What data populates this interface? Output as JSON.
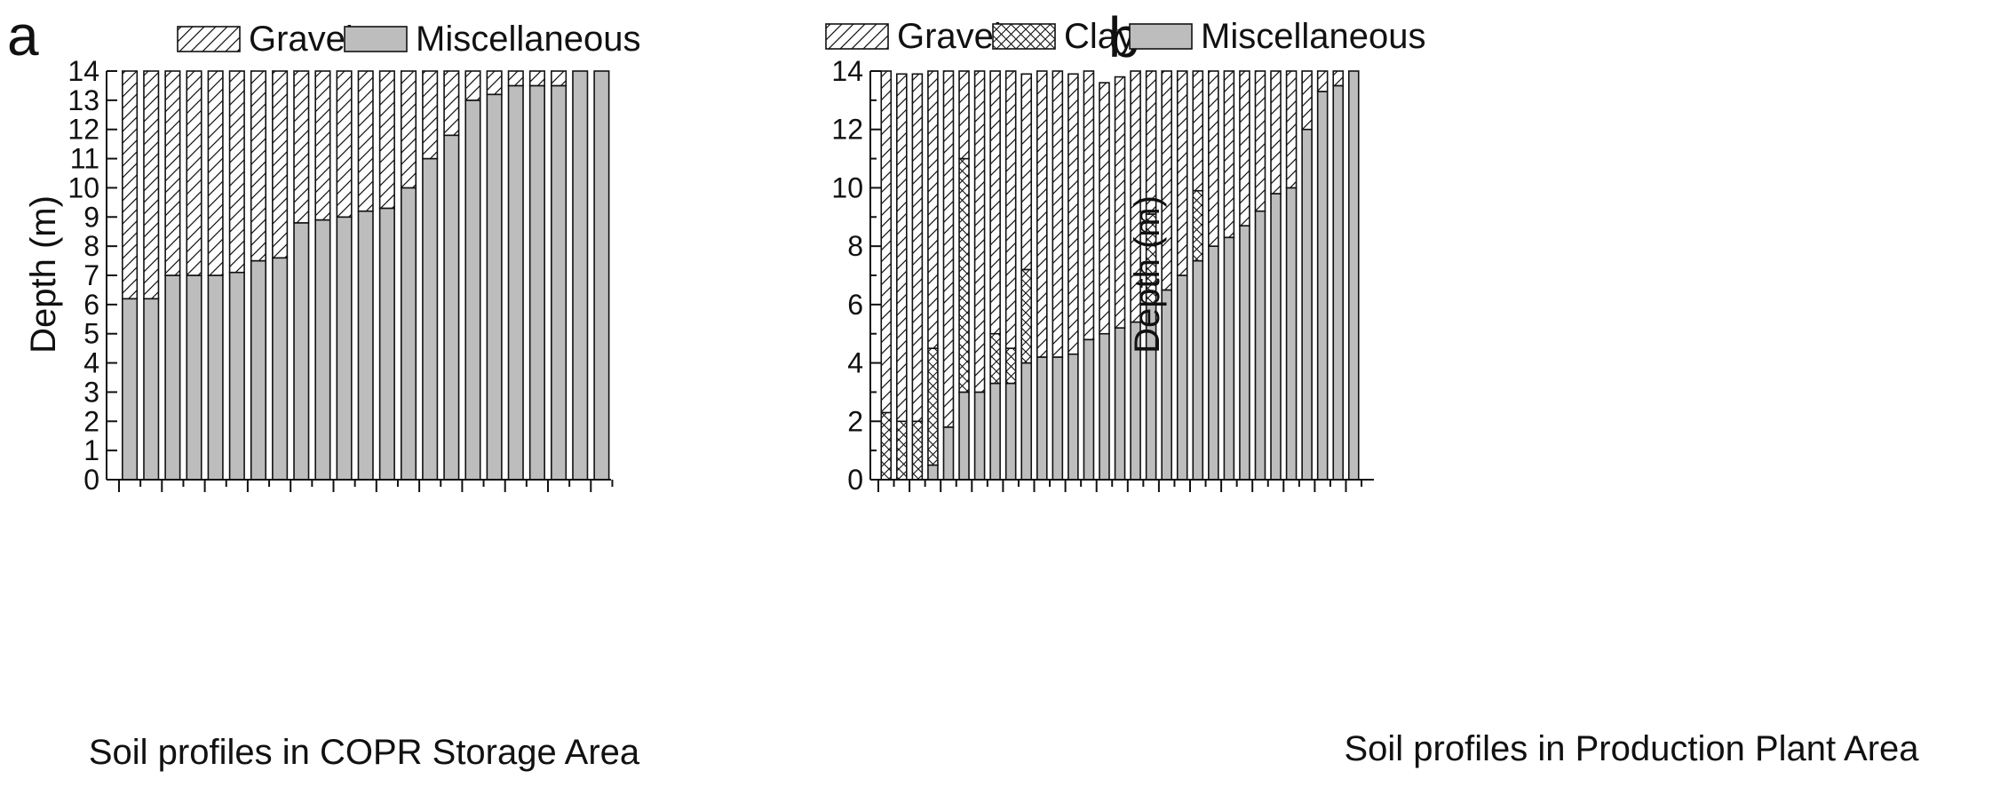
{
  "colors": {
    "misc_fill": "#bdbdbd",
    "stroke": "#111111",
    "background": "#ffffff"
  },
  "chart_data": [
    {
      "type": "bar",
      "stacked": true,
      "panel_label": "a",
      "title": "",
      "xlabel": "Soil profiles in COPR Storage Area",
      "ylabel": "Depth (m)",
      "ylim": [
        0,
        14
      ],
      "yticks": [
        0,
        1,
        2,
        3,
        4,
        5,
        6,
        7,
        8,
        9,
        10,
        11,
        12,
        13,
        14
      ],
      "grid": false,
      "legend_position": "top",
      "legend": [
        {
          "name": "Gravel",
          "pattern": "hatch-diagonal"
        },
        {
          "name": "Miscellaneous",
          "pattern": "solid-gray"
        }
      ],
      "profiles_count": 23,
      "series": [
        {
          "name": "Miscellaneous",
          "pattern": "solid-gray",
          "values": [
            6.2,
            6.2,
            7.0,
            7.0,
            7.0,
            7.1,
            7.5,
            7.6,
            8.8,
            8.9,
            9.0,
            9.2,
            9.3,
            10.0,
            11.0,
            11.8,
            13.0,
            13.2,
            13.5,
            13.5,
            13.5,
            14.0,
            14.0
          ]
        },
        {
          "name": "Gravel",
          "pattern": "hatch-diagonal",
          "values": [
            7.8,
            7.8,
            7.0,
            7.0,
            7.0,
            6.9,
            6.5,
            6.4,
            5.2,
            5.1,
            5.0,
            4.8,
            4.7,
            4.0,
            3.0,
            2.2,
            1.0,
            0.8,
            0.5,
            0.5,
            0.5,
            0.0,
            0.0
          ]
        }
      ]
    },
    {
      "type": "bar",
      "stacked": true,
      "panel_label": "b",
      "title": "",
      "xlabel": "Soil profiles in Production Plant Area",
      "ylabel": "Depth (m)",
      "ylim": [
        0,
        14
      ],
      "yticks": [
        0,
        2,
        4,
        6,
        8,
        10,
        12,
        14
      ],
      "grid": false,
      "legend_position": "top",
      "legend": [
        {
          "name": "Gravel",
          "pattern": "hatch-diagonal"
        },
        {
          "name": "Clay",
          "pattern": "hatch-cross"
        },
        {
          "name": "Miscellaneous",
          "pattern": "solid-gray"
        }
      ],
      "profiles_count": 31,
      "series": [
        {
          "name": "Miscellaneous",
          "pattern": "solid-gray",
          "values": [
            0,
            0,
            0,
            0.5,
            1.8,
            3.0,
            3.0,
            3.3,
            3.3,
            4.0,
            4.2,
            4.2,
            4.3,
            4.8,
            5.0,
            5.2,
            5.4,
            6.0,
            6.5,
            7.0,
            7.5,
            8.0,
            8.3,
            8.7,
            9.2,
            9.8,
            10.0,
            12.0,
            13.3,
            13.5,
            14.0
          ]
        },
        {
          "name": "Clay",
          "pattern": "hatch-cross",
          "values": [
            2.3,
            2.0,
            2.0,
            4.0,
            0,
            8.0,
            0,
            1.7,
            1.2,
            3.2,
            0,
            0,
            0,
            0,
            0,
            0,
            0,
            3.1,
            0,
            0,
            2.4,
            0,
            0,
            0,
            0,
            0,
            0,
            0,
            0,
            0,
            0
          ]
        },
        {
          "name": "Gravel",
          "pattern": "hatch-diagonal",
          "values": [
            11.7,
            11.9,
            11.9,
            9.5,
            12.2,
            3.0,
            11.0,
            9.0,
            9.5,
            6.7,
            9.8,
            9.8,
            9.6,
            9.2,
            8.6,
            8.6,
            8.6,
            4.9,
            7.5,
            7.0,
            4.1,
            6.0,
            5.7,
            5.3,
            4.8,
            4.2,
            4.0,
            2.0,
            0.7,
            0.5,
            0.0
          ]
        }
      ]
    }
  ]
}
